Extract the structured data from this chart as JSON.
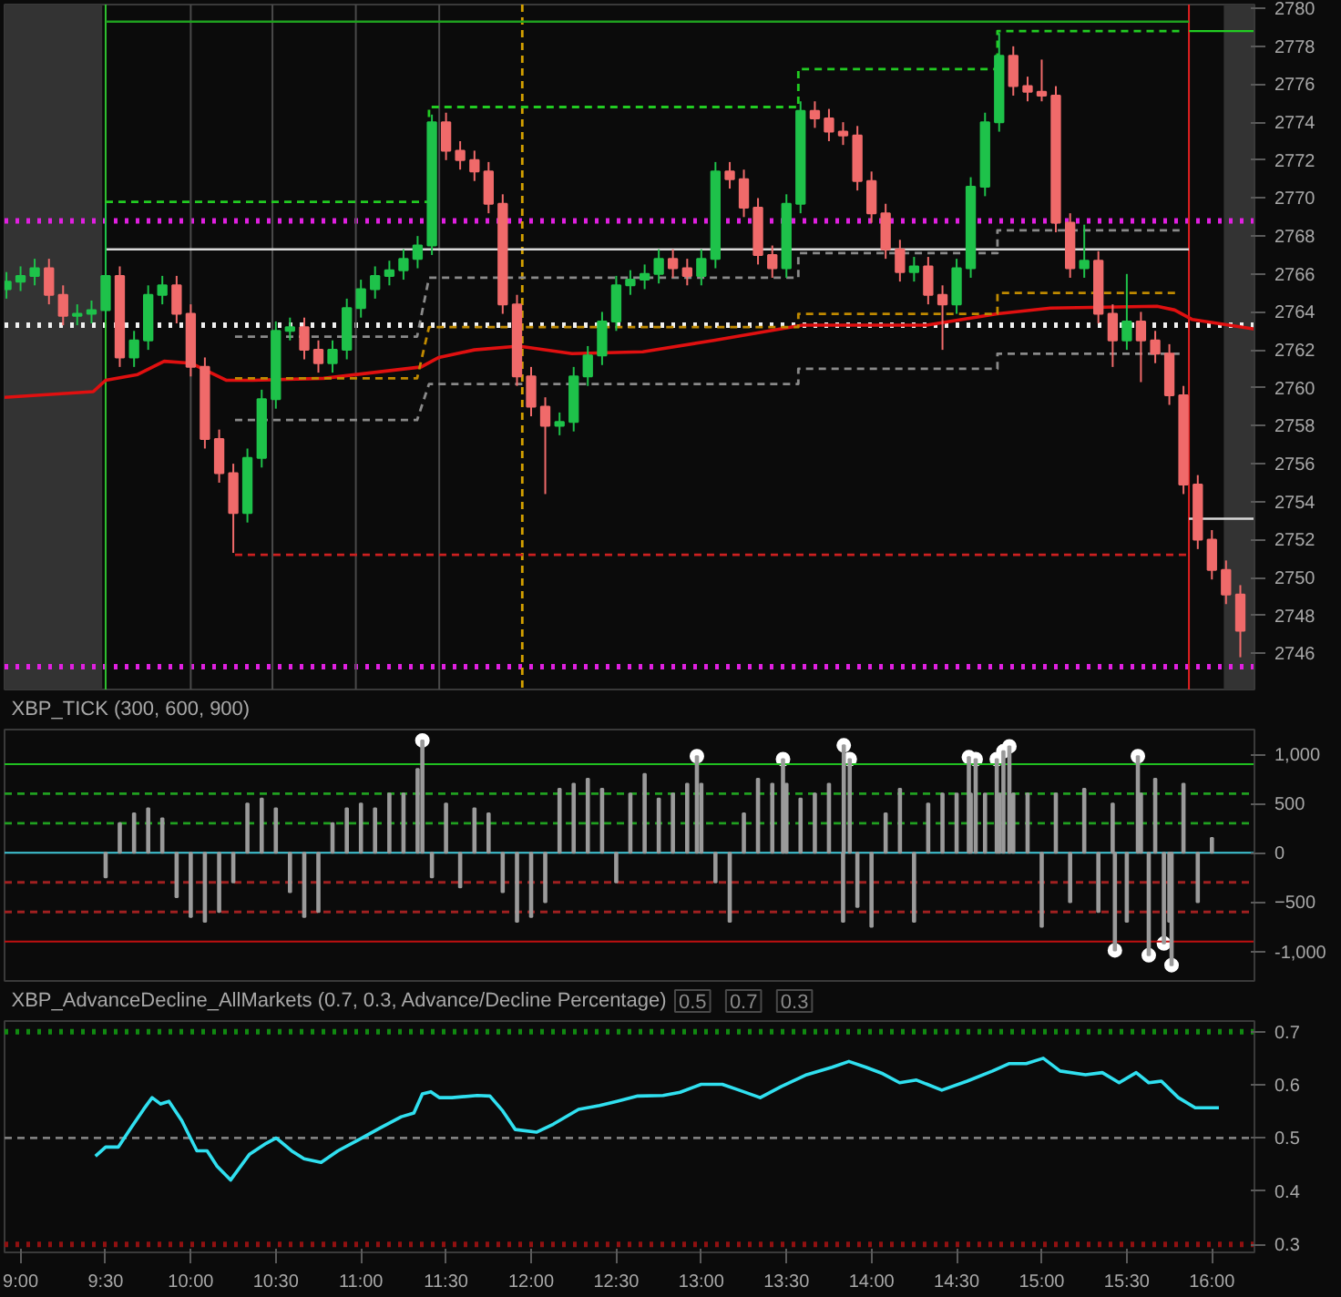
{
  "chart_data": [
    {
      "type": "candlestick",
      "xlim": [
        8.906,
        16.25
      ],
      "ylim": [
        2744.1,
        2780.2
      ],
      "yticks": [
        2746,
        2748,
        2750,
        2752,
        2754,
        2756,
        2758,
        2760,
        2762,
        2764,
        2766,
        2768,
        2770,
        2772,
        2774,
        2776,
        2778,
        2780
      ],
      "tick_labels": "y",
      "grid": false,
      "x": [
        8.917,
        9,
        9.083,
        9.167,
        9.25,
        9.333,
        9.417,
        9.5,
        9.583,
        9.667,
        9.75,
        9.833,
        9.917,
        10,
        10.083,
        10.167,
        10.25,
        10.333,
        10.417,
        10.5,
        10.583,
        10.667,
        10.75,
        10.833,
        10.917,
        11,
        11.083,
        11.167,
        11.25,
        11.333,
        11.417,
        11.5,
        11.583,
        11.667,
        11.75,
        11.833,
        11.917,
        12,
        12.083,
        12.167,
        12.25,
        12.333,
        12.417,
        12.5,
        12.583,
        12.667,
        12.75,
        12.833,
        12.917,
        13,
        13.083,
        13.167,
        13.25,
        13.333,
        13.417,
        13.5,
        13.583,
        13.667,
        13.75,
        13.833,
        13.917,
        14,
        14.083,
        14.167,
        14.25,
        14.333,
        14.417,
        14.5,
        14.583,
        14.667,
        14.75,
        14.833,
        14.917,
        15,
        15.083,
        15.167,
        15.25,
        15.333,
        15.417,
        15.5,
        15.583,
        15.667,
        15.75,
        15.833,
        15.917,
        16,
        16.083,
        16.167
      ],
      "ohlc": [
        [
          2765.2,
          2766.1,
          2764.7,
          2765.6
        ],
        [
          2765.6,
          2766.4,
          2765.1,
          2765.9
        ],
        [
          2765.9,
          2766.8,
          2765.4,
          2766.3
        ],
        [
          2766.3,
          2766.8,
          2764.4,
          2764.9
        ],
        [
          2764.9,
          2765.4,
          2763.3,
          2763.8
        ],
        [
          2763.8,
          2764.4,
          2763.3,
          2763.9
        ],
        [
          2763.9,
          2764.6,
          2763.4,
          2764.1
        ],
        [
          2764.1,
          2769.7,
          2763.6,
          2765.9
        ],
        [
          2765.9,
          2766.4,
          2761.1,
          2761.6
        ],
        [
          2761.6,
          2763.0,
          2761.1,
          2762.5
        ],
        [
          2762.5,
          2765.4,
          2762.0,
          2764.9
        ],
        [
          2764.9,
          2765.9,
          2764.4,
          2765.4
        ],
        [
          2765.4,
          2765.9,
          2763.4,
          2763.9
        ],
        [
          2763.9,
          2764.4,
          2760.6,
          2761.1
        ],
        [
          2761.1,
          2761.6,
          2756.8,
          2757.3
        ],
        [
          2757.3,
          2757.8,
          2755.0,
          2755.5
        ],
        [
          2755.5,
          2756.0,
          2751.3,
          2753.4
        ],
        [
          2753.4,
          2756.8,
          2752.9,
          2756.3
        ],
        [
          2756.3,
          2759.9,
          2755.8,
          2759.4
        ],
        [
          2759.4,
          2763.5,
          2758.9,
          2763.0
        ],
        [
          2763.0,
          2763.7,
          2762.5,
          2763.2
        ],
        [
          2763.2,
          2763.7,
          2761.5,
          2762.0
        ],
        [
          2762.0,
          2762.5,
          2760.8,
          2761.3
        ],
        [
          2761.3,
          2762.5,
          2760.8,
          2762.0
        ],
        [
          2762.0,
          2764.7,
          2761.5,
          2764.2
        ],
        [
          2764.2,
          2765.7,
          2763.7,
          2765.2
        ],
        [
          2765.2,
          2766.4,
          2764.7,
          2765.9
        ],
        [
          2765.9,
          2766.7,
          2765.4,
          2766.2
        ],
        [
          2766.2,
          2767.3,
          2765.7,
          2766.8
        ],
        [
          2766.8,
          2768.0,
          2766.3,
          2767.5
        ],
        [
          2767.5,
          2774.4,
          2767.0,
          2774.0
        ],
        [
          2774.0,
          2774.5,
          2772.0,
          2772.5
        ],
        [
          2772.5,
          2773.0,
          2771.5,
          2772.0
        ],
        [
          2772.0,
          2772.5,
          2770.9,
          2771.4
        ],
        [
          2771.4,
          2771.9,
          2769.2,
          2769.7
        ],
        [
          2769.7,
          2770.2,
          2763.9,
          2764.4
        ],
        [
          2764.4,
          2764.9,
          2760.1,
          2760.6
        ],
        [
          2760.6,
          2761.1,
          2758.5,
          2759.0
        ],
        [
          2759.0,
          2759.5,
          2754.4,
          2758.0
        ],
        [
          2758.0,
          2758.7,
          2757.5,
          2758.2
        ],
        [
          2758.2,
          2761.1,
          2757.7,
          2760.6
        ],
        [
          2760.6,
          2762.2,
          2760.1,
          2761.7
        ],
        [
          2761.7,
          2764.0,
          2761.2,
          2763.5
        ],
        [
          2763.5,
          2765.9,
          2763.0,
          2765.4
        ],
        [
          2765.4,
          2766.2,
          2764.9,
          2765.7
        ],
        [
          2765.7,
          2766.5,
          2765.2,
          2766.0
        ],
        [
          2766.0,
          2767.3,
          2765.5,
          2766.8
        ],
        [
          2766.8,
          2767.3,
          2765.8,
          2766.3
        ],
        [
          2766.3,
          2766.8,
          2765.4,
          2765.9
        ],
        [
          2765.9,
          2767.3,
          2765.4,
          2766.8
        ],
        [
          2766.8,
          2771.9,
          2766.3,
          2771.4
        ],
        [
          2771.4,
          2771.9,
          2770.5,
          2771.0
        ],
        [
          2771.0,
          2771.5,
          2769.0,
          2769.5
        ],
        [
          2769.5,
          2770.0,
          2766.5,
          2767.0
        ],
        [
          2767.0,
          2767.5,
          2765.8,
          2766.3
        ],
        [
          2766.3,
          2770.2,
          2765.8,
          2769.7
        ],
        [
          2769.7,
          2775.1,
          2769.2,
          2774.6
        ],
        [
          2774.6,
          2775.1,
          2773.7,
          2774.2
        ],
        [
          2774.2,
          2774.7,
          2773.0,
          2773.5
        ],
        [
          2773.5,
          2774.0,
          2772.8,
          2773.3
        ],
        [
          2773.3,
          2773.8,
          2770.4,
          2770.9
        ],
        [
          2770.9,
          2771.4,
          2768.7,
          2769.2
        ],
        [
          2769.2,
          2769.7,
          2766.8,
          2767.3
        ],
        [
          2767.3,
          2767.8,
          2765.6,
          2766.1
        ],
        [
          2766.1,
          2766.9,
          2765.6,
          2766.4
        ],
        [
          2766.4,
          2766.9,
          2764.4,
          2764.9
        ],
        [
          2764.9,
          2765.4,
          2762.0,
          2764.4
        ],
        [
          2764.4,
          2766.8,
          2763.9,
          2766.3
        ],
        [
          2766.3,
          2771.1,
          2765.8,
          2770.6
        ],
        [
          2770.6,
          2774.5,
          2770.1,
          2774.0
        ],
        [
          2774.0,
          2778.7,
          2773.5,
          2777.5
        ],
        [
          2777.5,
          2778.0,
          2775.4,
          2775.9
        ],
        [
          2775.9,
          2776.4,
          2775.1,
          2775.6
        ],
        [
          2775.6,
          2777.3,
          2775.1,
          2775.4
        ],
        [
          2775.4,
          2775.9,
          2768.2,
          2768.7
        ],
        [
          2768.7,
          2769.2,
          2765.8,
          2766.3
        ],
        [
          2766.3,
          2768.6,
          2765.8,
          2766.7
        ],
        [
          2766.7,
          2767.2,
          2763.4,
          2763.9
        ],
        [
          2763.9,
          2764.4,
          2761.1,
          2762.5
        ],
        [
          2762.5,
          2766.0,
          2762.0,
          2763.5
        ],
        [
          2763.5,
          2764.0,
          2760.3,
          2762.5
        ],
        [
          2762.5,
          2763.0,
          2761.3,
          2761.8
        ],
        [
          2761.8,
          2762.3,
          2759.1,
          2759.6
        ],
        [
          2759.6,
          2760.1,
          2754.4,
          2754.9
        ],
        [
          2754.9,
          2755.4,
          2751.5,
          2752.0
        ],
        [
          2752.0,
          2752.5,
          2749.9,
          2750.4
        ],
        [
          2750.4,
          2750.9,
          2748.6,
          2749.1
        ],
        [
          2749.1,
          2749.6,
          2745.8,
          2747.2
        ]
      ],
      "colors": [
        "#1ec24a",
        "#1ec24a",
        "#1ec24a",
        "#f06a6a",
        "#f06a6a",
        "#1ec24a",
        "#1ec24a",
        "#1ec24a",
        "#f06a6a",
        "#1ec24a",
        "#1ec24a",
        "#1ec24a",
        "#f06a6a",
        "#f06a6a",
        "#f06a6a",
        "#f06a6a",
        "#f06a6a",
        "#1ec24a",
        "#1ec24a",
        "#1ec24a",
        "#1ec24a",
        "#f06a6a",
        "#f06a6a",
        "#1ec24a",
        "#1ec24a",
        "#1ec24a",
        "#1ec24a",
        "#1ec24a",
        "#1ec24a",
        "#1ec24a",
        "#1ec24a",
        "#f06a6a",
        "#f06a6a",
        "#f06a6a",
        "#f06a6a",
        "#f06a6a",
        "#f06a6a",
        "#f06a6a",
        "#f06a6a",
        "#1ec24a",
        "#1ec24a",
        "#1ec24a",
        "#1ec24a",
        "#1ec24a",
        "#1ec24a",
        "#1ec24a",
        "#1ec24a",
        "#f06a6a",
        "#f06a6a",
        "#1ec24a",
        "#1ec24a",
        "#f06a6a",
        "#f06a6a",
        "#f06a6a",
        "#f06a6a",
        "#1ec24a",
        "#1ec24a",
        "#f06a6a",
        "#f06a6a",
        "#f06a6a",
        "#f06a6a",
        "#f06a6a",
        "#f06a6a",
        "#f06a6a",
        "#1ec24a",
        "#f06a6a",
        "#f06a6a",
        "#1ec24a",
        "#1ec24a",
        "#1ec24a",
        "#1ec24a",
        "#f06a6a",
        "#f06a6a",
        "#f06a6a",
        "#f06a6a",
        "#f06a6a",
        "#1ec24a",
        "#f06a6a",
        "#f06a6a",
        "#1ec24a",
        "#f06a6a",
        "#f06a6a",
        "#f06a6a",
        "#f06a6a",
        "#f06a6a",
        "#f06a6a",
        "#f06a6a",
        "#f06a6a"
      ],
      "series": [
        {
          "type": "line",
          "color": "#e01010",
          "line_style": "solid",
          "x": [
            8.906,
            9.427,
            9.5,
            9.688,
            9.844,
            10.0,
            10.208,
            10.365,
            10.781,
            11.354,
            11.458,
            11.667,
            11.927,
            12.24,
            12.656,
            13.073,
            13.594,
            14.323,
            14.74,
            15.052,
            15.677,
            15.781,
            15.885,
            16.25
          ],
          "values": [
            2759.5,
            2759.8,
            2760.4,
            2760.7,
            2761.4,
            2761.3,
            2760.4,
            2760.4,
            2760.5,
            2761.1,
            2761.6,
            2762.0,
            2762.2,
            2761.8,
            2761.9,
            2762.5,
            2763.3,
            2763.3,
            2763.9,
            2764.2,
            2764.3,
            2764.1,
            2763.6,
            2763.1
          ]
        },
        {
          "type": "line",
          "color": "#1fa01f",
          "line_style": "solid",
          "x": [
            9.5,
            15.865
          ],
          "values": [
            2779.3,
            2779.3
          ]
        },
        {
          "type": "line",
          "color": "#22cc22",
          "line_style": "solid",
          "x": [
            15.865,
            16.25
          ],
          "values": [
            2778.8,
            2778.8
          ]
        },
        {
          "type": "line",
          "color": "#d8d8d8",
          "line_style": "solid",
          "x": [
            9.5,
            15.865
          ],
          "values": [
            2767.3,
            2767.3
          ]
        },
        {
          "type": "line",
          "color": "#d8d8d8",
          "line_style": "solid",
          "x": [
            15.865,
            16.25
          ],
          "values": [
            2753.1,
            2753.1
          ]
        },
        {
          "type": "line",
          "color": "#cc2020",
          "line_style": "dashed",
          "x": [
            10.26,
            15.865
          ],
          "values": [
            2751.2,
            2751.2
          ]
        },
        {
          "type": "line",
          "color": "#22cc22",
          "line_style": "dashed",
          "x": [
            9.5,
            11.4,
            11.4,
            13.57,
            13.57,
            14.74,
            14.74,
            15.81
          ],
          "values": [
            2769.8,
            2769.8,
            2774.8,
            2774.8,
            2776.8,
            2776.8,
            2778.8,
            2778.8
          ]
        },
        {
          "type": "line",
          "color": "#8a8a8a",
          "line_style": "dashed",
          "x": [
            10.26,
            11.33,
            11.4,
            13.57,
            13.57,
            14.74,
            14.74,
            15.81
          ],
          "values": [
            2762.7,
            2762.7,
            2765.8,
            2765.8,
            2767.1,
            2767.1,
            2768.3,
            2768.3
          ]
        },
        {
          "type": "line",
          "color": "#8a8a8a",
          "line_style": "dashed",
          "x": [
            10.26,
            11.33,
            11.4,
            13.57,
            13.57,
            14.74,
            14.74,
            15.81
          ],
          "values": [
            2758.3,
            2758.3,
            2760.2,
            2760.2,
            2761.0,
            2761.0,
            2761.8,
            2761.8
          ]
        },
        {
          "type": "line",
          "color": "#c08a00",
          "line_style": "dashed",
          "x": [
            10.26,
            11.33,
            11.4,
            13.57,
            13.57,
            14.74,
            14.74,
            15.81
          ],
          "values": [
            2760.5,
            2760.5,
            2763.2,
            2763.2,
            2763.9,
            2763.9,
            2765.0,
            2765.0
          ]
        }
      ],
      "ref_lines": [
        {
          "axis": "y",
          "value": 2768.8,
          "color": "#e020e0",
          "line_style": "dotted"
        },
        {
          "axis": "y",
          "value": 2745.3,
          "color": "#e020e0",
          "line_style": "dotted"
        },
        {
          "axis": "y",
          "value": 2763.3,
          "color": "#f0f0f0",
          "line_style": "dotted"
        },
        {
          "axis": "x",
          "value": 9.5,
          "color": "#30c030",
          "line_style": "solid"
        },
        {
          "axis": "x",
          "value": 10.0,
          "color": "#4a4a4a",
          "line_style": "solid"
        },
        {
          "axis": "x",
          "value": 10.48,
          "color": "#4a4a4a",
          "line_style": "solid"
        },
        {
          "axis": "x",
          "value": 10.97,
          "color": "#4a4a4a",
          "line_style": "solid"
        },
        {
          "axis": "x",
          "value": 11.46,
          "color": "#4a4a4a",
          "line_style": "solid"
        },
        {
          "axis": "x",
          "value": 11.948,
          "color": "#d4a000",
          "line_style": "dashed"
        },
        {
          "axis": "x",
          "value": 15.865,
          "color": "#e02020",
          "line_style": "solid"
        }
      ],
      "bands": [
        {
          "axis": "x",
          "from": 8.906,
          "to": 9.48,
          "color": "#333333"
        },
        {
          "axis": "x",
          "from": 16.07,
          "to": 16.25,
          "color": "#333333"
        }
      ]
    },
    {
      "type": "bar",
      "title": "XBP_TICK (300, 600, 900)",
      "xlim": [
        8.906,
        16.25
      ],
      "ylim": [
        -1300,
        1250
      ],
      "yticks": [
        {
          "value": -1000,
          "label": "-1,000"
        },
        -500,
        0,
        500,
        {
          "value": 1000,
          "label": "1,000"
        }
      ],
      "tick_labels": "y",
      "grid": false,
      "series": [
        {
          "type": "bar",
          "color": "#9a9a9a",
          "x": [
            9.5,
            9.583,
            9.667,
            9.75,
            9.833,
            9.917,
            10,
            10.083,
            10.167,
            10.25,
            10.333,
            10.417,
            10.5,
            10.583,
            10.667,
            10.75,
            10.833,
            10.917,
            11,
            11.083,
            11.167,
            11.25,
            11.333,
            11.361,
            11.417,
            11.5,
            11.583,
            11.667,
            11.75,
            11.833,
            11.917,
            12,
            12.083,
            12.167,
            12.25,
            12.333,
            12.417,
            12.5,
            12.583,
            12.667,
            12.75,
            12.833,
            12.917,
            12.974,
            13,
            13.083,
            13.167,
            13.25,
            13.333,
            13.417,
            13.48,
            13.5,
            13.583,
            13.667,
            13.75,
            13.833,
            13.837,
            13.872,
            13.917,
            14,
            14.083,
            14.167,
            14.25,
            14.333,
            14.417,
            14.5,
            14.572,
            14.583,
            14.612,
            14.667,
            14.736,
            14.75,
            14.775,
            14.81,
            14.833,
            14.917,
            15,
            15.083,
            15.167,
            15.25,
            15.333,
            15.417,
            15.43,
            15.5,
            15.565,
            15.583,
            15.629,
            15.667,
            15.718,
            15.75,
            15.763,
            15.833,
            15.917,
            16
          ],
          "values": [
            -250,
            300,
            400,
            450,
            350,
            -450,
            -650,
            -700,
            -600,
            -300,
            500,
            550,
            450,
            -400,
            -650,
            -600,
            300,
            450,
            500,
            450,
            600,
            600,
            850,
            1140,
            -250,
            500,
            -350,
            450,
            400,
            -400,
            -700,
            -650,
            -500,
            650,
            700,
            750,
            650,
            -300,
            600,
            800,
            550,
            600,
            700,
            980,
            700,
            -300,
            -700,
            400,
            750,
            700,
            950,
            700,
            550,
            600,
            700,
            -700,
            1090,
            950,
            -550,
            -750,
            400,
            650,
            -700,
            500,
            600,
            600,
            970,
            600,
            950,
            600,
            950,
            600,
            1030,
            1080,
            600,
            600,
            -750,
            600,
            -500,
            650,
            -600,
            500,
            -990,
            -700,
            980,
            600,
            -1040,
            750,
            -920,
            -700,
            -1140,
            700,
            -500,
            150
          ]
        },
        {
          "type": "scatter",
          "color": "#ffffff",
          "marker": "circle",
          "x": [
            11.361,
            12.974,
            13.48,
            13.837,
            13.872,
            14.572,
            14.612,
            14.736,
            14.775,
            14.81,
            15.43,
            15.565,
            15.629,
            15.718,
            15.763
          ],
          "values": [
            1140,
            980,
            950,
            1090,
            950,
            970,
            950,
            950,
            1030,
            1080,
            -990,
            980,
            -1040,
            -920,
            -1140
          ]
        }
      ],
      "ref_lines": [
        {
          "axis": "y",
          "value": 900,
          "color": "#20c020",
          "line_style": "solid"
        },
        {
          "axis": "y",
          "value": 600,
          "color": "#20a020",
          "line_style": "dashed"
        },
        {
          "axis": "y",
          "value": 300,
          "color": "#20a020",
          "line_style": "dashed"
        },
        {
          "axis": "y",
          "value": 0,
          "color": "#40c8d8",
          "line_style": "solid"
        },
        {
          "axis": "y",
          "value": -300,
          "color": "#a02020",
          "line_style": "dashed"
        },
        {
          "axis": "y",
          "value": -600,
          "color": "#a02020",
          "line_style": "dashed"
        },
        {
          "axis": "y",
          "value": -900,
          "color": "#c01010",
          "line_style": "solid"
        }
      ]
    },
    {
      "type": "line",
      "title": "XBP_AdvanceDecline_AllMarkets (0.7, 0.3, Advance/Decline Percentage)",
      "annotations": [
        "0.5",
        "0.7",
        "0.3"
      ],
      "xlim": [
        8.906,
        16.25
      ],
      "ylim": [
        0.285,
        0.72
      ],
      "yticks": [
        0.3,
        0.4,
        0.5,
        0.6,
        0.7
      ],
      "xticks": [
        {
          "value": 9,
          "label": "9:00"
        },
        {
          "value": 9.5,
          "label": "9:30"
        },
        {
          "value": 10,
          "label": "10:00"
        },
        {
          "value": 10.5,
          "label": "10:30"
        },
        {
          "value": 11,
          "label": "11:00"
        },
        {
          "value": 11.5,
          "label": "11:30"
        },
        {
          "value": 12,
          "label": "12:00"
        },
        {
          "value": 12.5,
          "label": "12:30"
        },
        {
          "value": 13,
          "label": "13:00"
        },
        {
          "value": 13.5,
          "label": "13:30"
        },
        {
          "value": 14,
          "label": "14:00"
        },
        {
          "value": 14.5,
          "label": "14:30"
        },
        {
          "value": 15,
          "label": "15:00"
        },
        {
          "value": 15.5,
          "label": "15:30"
        },
        {
          "value": 16,
          "label": "16:00"
        }
      ],
      "grid": false,
      "series": [
        {
          "color": "#30e0f0",
          "line_style": "solid",
          "x": [
            9.44,
            9.5,
            9.574,
            9.649,
            9.723,
            9.773,
            9.823,
            9.872,
            9.947,
            10.036,
            10.096,
            10.155,
            10.234,
            10.344,
            10.443,
            10.502,
            10.592,
            10.666,
            10.766,
            10.865,
            10.989,
            11.113,
            11.237,
            11.311,
            11.361,
            11.411,
            11.46,
            11.535,
            11.684,
            11.758,
            11.833,
            11.907,
            12.031,
            12.13,
            12.279,
            12.403,
            12.503,
            12.627,
            12.775,
            12.875,
            12.999,
            13.123,
            13.222,
            13.346,
            13.47,
            13.619,
            13.768,
            13.867,
            13.967,
            14.066,
            14.165,
            14.264,
            14.413,
            14.562,
            14.711,
            14.81,
            14.909,
            15.009,
            15.108,
            15.257,
            15.356,
            15.455,
            15.555,
            15.629,
            15.703,
            15.803,
            15.902,
            16.041
          ],
          "values": [
            0.466,
            0.483,
            0.483,
            0.519,
            0.554,
            0.576,
            0.564,
            0.569,
            0.533,
            0.476,
            0.476,
            0.447,
            0.421,
            0.469,
            0.49,
            0.5,
            0.476,
            0.461,
            0.454,
            0.476,
            0.497,
            0.519,
            0.54,
            0.547,
            0.583,
            0.587,
            0.576,
            0.576,
            0.58,
            0.579,
            0.551,
            0.516,
            0.511,
            0.526,
            0.554,
            0.561,
            0.569,
            0.579,
            0.58,
            0.586,
            0.601,
            0.601,
            0.59,
            0.576,
            0.597,
            0.619,
            0.633,
            0.644,
            0.633,
            0.621,
            0.604,
            0.609,
            0.59,
            0.607,
            0.626,
            0.64,
            0.64,
            0.65,
            0.626,
            0.619,
            0.623,
            0.604,
            0.623,
            0.604,
            0.607,
            0.576,
            0.557,
            0.557
          ]
        }
      ],
      "ref_lines": [
        {
          "axis": "y",
          "value": 0.7,
          "color": "#108a10",
          "line_style": "dotted"
        },
        {
          "axis": "y",
          "value": 0.5,
          "color": "#808080",
          "line_style": "dashed"
        },
        {
          "axis": "y",
          "value": 0.3,
          "color": "#901010",
          "line_style": "dotted"
        }
      ]
    }
  ]
}
